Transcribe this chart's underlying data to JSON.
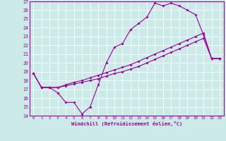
{
  "xlabel": "Windchill (Refroidissement éolien,°C)",
  "xlim": [
    -0.5,
    23.5
  ],
  "ylim": [
    14,
    27
  ],
  "xticks": [
    0,
    1,
    2,
    3,
    4,
    5,
    6,
    7,
    8,
    9,
    10,
    11,
    12,
    13,
    14,
    15,
    16,
    17,
    18,
    19,
    20,
    21,
    22,
    23
  ],
  "yticks": [
    14,
    15,
    16,
    17,
    18,
    19,
    20,
    21,
    22,
    23,
    24,
    25,
    26,
    27
  ],
  "bg_color": "#cceae7",
  "line_color": "#990099",
  "grid_color": "#ffffff",
  "line1_x": [
    0,
    1,
    2,
    3,
    4,
    5,
    6,
    7,
    8,
    9,
    10,
    11,
    12,
    13,
    14,
    15,
    16,
    17,
    18,
    19,
    20,
    21,
    22,
    23
  ],
  "line1_y": [
    18.8,
    17.2,
    17.2,
    16.6,
    15.5,
    15.5,
    14.2,
    15.0,
    17.5,
    20.0,
    21.8,
    22.2,
    23.8,
    24.5,
    25.2,
    26.8,
    26.5,
    26.8,
    26.5,
    26.0,
    25.5,
    23.2,
    20.5,
    20.5
  ],
  "line2_x": [
    0,
    1,
    2,
    3,
    4,
    5,
    6,
    7,
    8,
    9,
    10,
    11,
    12,
    13,
    14,
    15,
    16,
    17,
    18,
    19,
    20,
    21,
    22,
    23
  ],
  "line2_y": [
    18.8,
    17.2,
    17.2,
    17.2,
    17.4,
    17.6,
    17.8,
    18.0,
    18.2,
    18.5,
    18.8,
    19.0,
    19.3,
    19.6,
    20.0,
    20.4,
    20.8,
    21.2,
    21.6,
    22.0,
    22.4,
    22.8,
    20.5,
    20.5
  ],
  "line3_x": [
    0,
    1,
    2,
    3,
    4,
    5,
    6,
    7,
    8,
    9,
    10,
    11,
    12,
    13,
    14,
    15,
    16,
    17,
    18,
    19,
    20,
    21,
    22,
    23
  ],
  "line3_y": [
    18.8,
    17.2,
    17.2,
    17.2,
    17.5,
    17.8,
    18.0,
    18.3,
    18.6,
    18.9,
    19.2,
    19.5,
    19.8,
    20.2,
    20.6,
    21.0,
    21.4,
    21.8,
    22.2,
    22.6,
    23.0,
    23.4,
    20.5,
    20.5
  ]
}
